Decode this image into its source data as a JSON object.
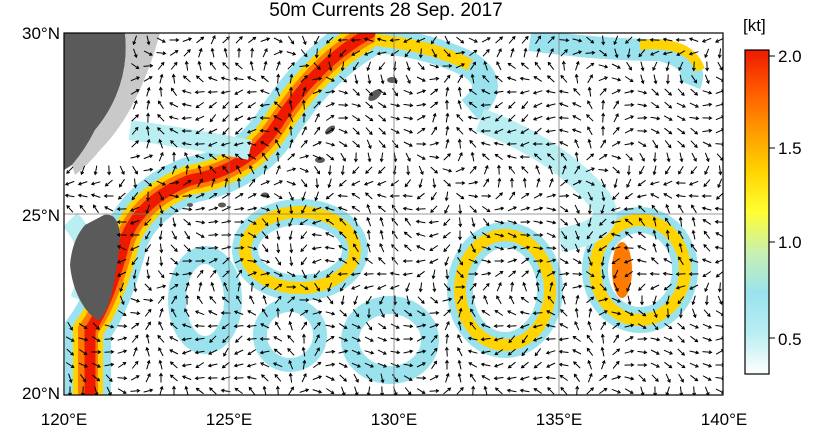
{
  "title": "50m Currents  28 Sep. 2017",
  "latitude_labels": [
    "30°N",
    "25°N",
    "20°N"
  ],
  "longitude_labels": [
    "120°E",
    "125°E",
    "130°E",
    "135°E",
    "140°E"
  ],
  "colorbar": {
    "unit": "[kt]",
    "ticks": [
      "2.0",
      "1.5",
      "1.0",
      "0.5"
    ],
    "colors": [
      "#ffffff",
      "#b9eef2",
      "#9ae3ee",
      "#c8f0b0",
      "#ffff33",
      "#ffd400",
      "#ff9a00",
      "#ff5a00",
      "#ee1a00"
    ]
  },
  "map_colors": {
    "land": "#5a5a5a",
    "shelf": "#c9c9c9",
    "grid": "#7a7a7a",
    "arrow": "#000000"
  }
}
